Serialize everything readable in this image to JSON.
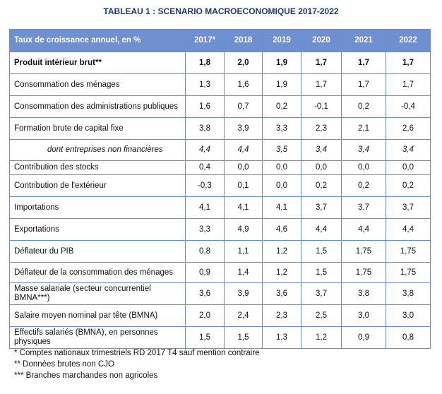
{
  "title": "TABLEAU 1 : SCENARIO MACROECONOMIQUE 2017-2022",
  "header": {
    "label": "Taux de croissance annuel, en %",
    "years": [
      "2017*",
      "2018",
      "2019",
      "2020",
      "2021",
      "2022"
    ]
  },
  "rows": [
    {
      "label": "Produit intérieur brut**",
      "values": [
        "1,8",
        "2,0",
        "1,9",
        "1,7",
        "1,7",
        "1,7"
      ],
      "style": "bold"
    },
    {
      "label": "Consommation des ménages",
      "values": [
        "1,3",
        "1,6",
        "1,9",
        "1,7",
        "1,7",
        "1,7"
      ]
    },
    {
      "label": "Consommation des administrations publiques",
      "values": [
        "1,6",
        "0,7",
        "0,2",
        "-0,1",
        "0,2",
        "-0,4"
      ]
    },
    {
      "label": "Formation brute de capital fixe",
      "values": [
        "3,8",
        "3,9",
        "3,3",
        "2,3",
        "2,1",
        "2,6"
      ]
    },
    {
      "label": "dont entreprises non financières",
      "values": [
        "4,4",
        "4,4",
        "3,5",
        "3,4",
        "3,4",
        "3,4"
      ],
      "style": "italic"
    },
    {
      "label": "Contribution des stocks",
      "values": [
        "0,4",
        "0,0",
        "0,0",
        "0,0",
        "0,0",
        "0,0"
      ]
    },
    {
      "label": "Contribution de l'extérieur",
      "values": [
        "-0,3",
        "0,1",
        "0,0",
        "0,2",
        "0,2",
        "0,2"
      ]
    },
    {
      "label": "Importations",
      "values": [
        "4,1",
        "4,1",
        "4,1",
        "3,7",
        "3,7",
        "3,7"
      ]
    },
    {
      "label": "Exportations",
      "values": [
        "3,3",
        "4,9",
        "4,6",
        "4,4",
        "4,4",
        "4,4"
      ]
    },
    {
      "label": "Déflateur du PIB",
      "values": [
        "0,8",
        "1,1",
        "1,2",
        "1,5",
        "1,75",
        "1,75"
      ]
    },
    {
      "label": "Déflateur de la consommation des ménages",
      "values": [
        "0,9",
        "1,4",
        "1,2",
        "1,5",
        "1,75",
        "1,75"
      ]
    },
    {
      "label": "Masse salariale (secteur concurrentiel BMNA***)",
      "values": [
        "3,6",
        "3,9",
        "3,6",
        "3,7",
        "3,8",
        "3,8"
      ]
    },
    {
      "label": "Salaire moyen nominal par tête (BMNA)",
      "values": [
        "2,0",
        "2,4",
        "2,3",
        "2,5",
        "3,0",
        "3,0"
      ]
    },
    {
      "label": "Effectifs salariés (BMNA), en personnes physiques",
      "values": [
        "1,5",
        "1,5",
        "1,3",
        "1,2",
        "0,9",
        "0,8"
      ]
    }
  ],
  "footnotes": [
    "* Comptes nationaux trimestriels RD 2017 T4 sauf mention contraire",
    "** Données brutes non CJO",
    "*** Branches marchandes non agricoles"
  ]
}
